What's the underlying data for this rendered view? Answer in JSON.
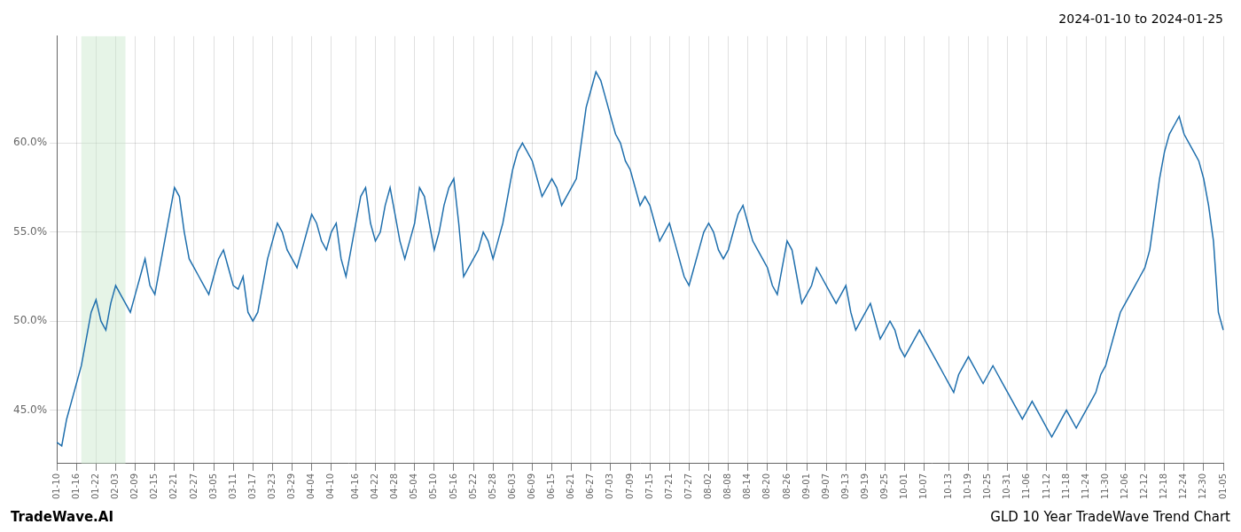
{
  "chart_data": {
    "type": "line",
    "title": "2024-01-10 to 2024-01-25",
    "annotations": [
      "TradeWave.AI",
      "GLD 10 Year TradeWave Trend Chart"
    ],
    "color": "#1f6fad",
    "grid": true,
    "highlight": {
      "from": 5,
      "to": 14,
      "color": "#c8e6c9"
    },
    "ylim": [
      42.0,
      66.0
    ],
    "yticks": [
      {
        "value": 45.0,
        "label": "45.0%"
      },
      {
        "value": 50.0,
        "label": "50.0%"
      },
      {
        "value": 55.0,
        "label": "55.0%"
      },
      {
        "value": 60.0,
        "label": "60.0%"
      }
    ],
    "categories": [
      "01-10",
      null,
      null,
      null,
      "01-16",
      null,
      null,
      null,
      "01-22",
      null,
      null,
      null,
      "02-03",
      null,
      null,
      null,
      "02-09",
      null,
      null,
      null,
      "02-15",
      null,
      null,
      null,
      "02-21",
      null,
      null,
      null,
      "02-27",
      null,
      null,
      null,
      "03-05",
      null,
      null,
      null,
      "03-11",
      null,
      null,
      null,
      "03-17",
      null,
      null,
      null,
      "03-23",
      null,
      null,
      null,
      "03-29",
      null,
      null,
      null,
      "04-04",
      null,
      null,
      null,
      "04-10",
      null,
      null,
      null,
      null,
      "04-16",
      null,
      null,
      null,
      "04-22",
      null,
      null,
      null,
      "04-28",
      null,
      null,
      null,
      "05-04",
      null,
      null,
      null,
      "05-10",
      null,
      null,
      null,
      "05-16",
      null,
      null,
      null,
      "05-22",
      null,
      null,
      null,
      "05-28",
      null,
      null,
      null,
      "06-03",
      null,
      null,
      null,
      "06-09",
      null,
      null,
      null,
      "06-15",
      null,
      null,
      null,
      "06-21",
      null,
      null,
      null,
      "06-27",
      null,
      null,
      null,
      "07-03",
      null,
      null,
      null,
      "07-09",
      null,
      null,
      null,
      "07-15",
      null,
      null,
      null,
      "07-21",
      null,
      null,
      null,
      "07-27",
      null,
      null,
      null,
      "08-02",
      null,
      null,
      null,
      "08-08",
      null,
      null,
      null,
      "08-14",
      null,
      null,
      null,
      "08-20",
      null,
      null,
      null,
      "08-26",
      null,
      null,
      null,
      "09-01",
      null,
      null,
      null,
      "09-07",
      null,
      null,
      null,
      "09-13",
      null,
      null,
      null,
      "09-19",
      null,
      null,
      null,
      "09-25",
      null,
      null,
      null,
      "10-01",
      null,
      null,
      null,
      "10-07",
      null,
      null,
      null,
      null,
      "10-13",
      null,
      null,
      null,
      "10-19",
      null,
      null,
      null,
      "10-25",
      null,
      null,
      null,
      "10-31",
      null,
      null,
      null,
      "11-06",
      null,
      null,
      null,
      "11-12",
      null,
      null,
      null,
      "11-18",
      null,
      null,
      null,
      "11-24",
      null,
      null,
      null,
      "11-30",
      null,
      null,
      null,
      "12-06",
      null,
      null,
      null,
      "12-12",
      null,
      null,
      null,
      "12-18",
      null,
      null,
      null,
      "12-24",
      null,
      null,
      null,
      "12-30",
      null,
      null,
      null,
      "01-05"
    ],
    "values": [
      43.2,
      43.0,
      44.5,
      45.5,
      46.5,
      47.5,
      49.0,
      50.5,
      51.2,
      50.0,
      49.5,
      51.0,
      52.0,
      51.5,
      51.0,
      50.5,
      51.5,
      52.5,
      53.5,
      52.0,
      51.5,
      53.0,
      54.5,
      56.0,
      57.5,
      57.0,
      55.0,
      53.5,
      53.0,
      52.5,
      52.0,
      51.5,
      52.5,
      53.5,
      54.0,
      53.0,
      52.0,
      51.8,
      52.5,
      50.5,
      50.0,
      50.5,
      52.0,
      53.5,
      54.5,
      55.5,
      55.0,
      54.0,
      53.5,
      53.0,
      54.0,
      55.0,
      56.0,
      55.5,
      54.5,
      54.0,
      55.0,
      55.5,
      53.5,
      52.5,
      54.0,
      55.5,
      57.0,
      57.5,
      55.5,
      54.5,
      55.0,
      56.5,
      57.5,
      56.0,
      54.5,
      53.5,
      54.5,
      55.5,
      57.5,
      57.0,
      55.5,
      54.0,
      55.0,
      56.5,
      57.5,
      58.0,
      55.5,
      52.5,
      53.0,
      53.5,
      54.0,
      55.0,
      54.5,
      53.5,
      54.5,
      55.5,
      57.0,
      58.5,
      59.5,
      60.0,
      59.5,
      59.0,
      58.0,
      57.0,
      57.5,
      58.0,
      57.5,
      56.5,
      57.0,
      57.5,
      58.0,
      60.0,
      62.0,
      63.0,
      64.0,
      63.5,
      62.5,
      61.5,
      60.5,
      60.0,
      59.0,
      58.5,
      57.5,
      56.5,
      57.0,
      56.5,
      55.5,
      54.5,
      55.0,
      55.5,
      54.5,
      53.5,
      52.5,
      52.0,
      53.0,
      54.0,
      55.0,
      55.5,
      55.0,
      54.0,
      53.5,
      54.0,
      55.0,
      56.0,
      56.5,
      55.5,
      54.5,
      54.0,
      53.5,
      53.0,
      52.0,
      51.5,
      53.0,
      54.5,
      54.0,
      52.5,
      51.0,
      51.5,
      52.0,
      53.0,
      52.5,
      52.0,
      51.5,
      51.0,
      51.5,
      52.0,
      50.5,
      49.5,
      50.0,
      50.5,
      51.0,
      50.0,
      49.0,
      49.5,
      50.0,
      49.5,
      48.5,
      48.0,
      48.5,
      49.0,
      49.5,
      49.0,
      48.5,
      48.0,
      47.5,
      47.0,
      46.5,
      46.0,
      47.0,
      47.5,
      48.0,
      47.5,
      47.0,
      46.5,
      47.0,
      47.5,
      47.0,
      46.5,
      46.0,
      45.5,
      45.0,
      44.5,
      45.0,
      45.5,
      45.0,
      44.5,
      44.0,
      43.5,
      44.0,
      44.5,
      45.0,
      44.5,
      44.0,
      44.5,
      45.0,
      45.5,
      46.0,
      47.0,
      47.5,
      48.5,
      49.5,
      50.5,
      51.0,
      51.5,
      52.0,
      52.5,
      53.0,
      54.0,
      56.0,
      58.0,
      59.5,
      60.5,
      61.0,
      61.5,
      60.5,
      60.0,
      59.5,
      59.0,
      58.0,
      56.5,
      54.5,
      50.5,
      49.5
    ]
  }
}
